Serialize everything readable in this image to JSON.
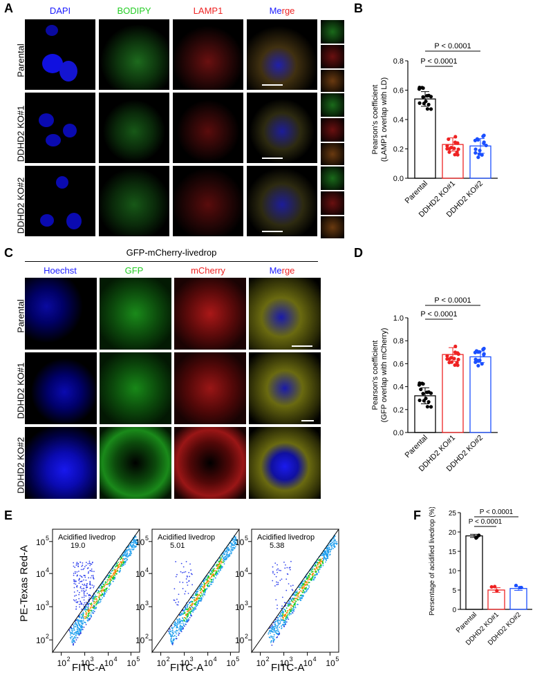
{
  "panel_letters": {
    "a": "A",
    "b": "B",
    "c": "C",
    "d": "D",
    "e": "E",
    "f": "F"
  },
  "colors": {
    "blue": "#1a1aff",
    "green": "#22cc22",
    "red": "#ee2222",
    "dark": "#000000",
    "parental": "#000000",
    "ko1": "#ee2222",
    "ko2": "#1a4fff"
  },
  "panel_a": {
    "channels": [
      "DAPI",
      "BODIPY",
      "LAMP1",
      "Merge"
    ],
    "rows": [
      "Parental",
      "DDHD2 KO#1",
      "DDHD2 KO#2"
    ]
  },
  "panel_c": {
    "title": "GFP-mCherry-livedrop",
    "channels": [
      "Hoechst",
      "GFP",
      "mCherry",
      "Merge"
    ],
    "rows": [
      "Parental",
      "DDHD2 KO#1",
      "DDHD2 KO#2"
    ]
  },
  "panel_e": {
    "gate_label": "Acidified livedrop",
    "values": [
      "19.0",
      "5.01",
      "5.38"
    ],
    "ylabel": "PE-Texas Red-A",
    "xlabel": "FITC-A"
  },
  "chart_data": [
    {
      "id": "B",
      "type": "bar",
      "categories": [
        "Parental",
        "DDHD2 KO#1",
        "DDHD2 KO#2"
      ],
      "values": [
        0.54,
        0.23,
        0.22
      ],
      "errors": [
        0.05,
        0.045,
        0.05
      ],
      "ylabel": "Pearson's coefficient\n(LAMP1 overlap with LD)",
      "ylim": [
        0,
        0.8
      ],
      "yticks": [
        "0.0",
        "0.2",
        "0.4",
        "0.6",
        "0.8"
      ],
      "annotations": [
        "P < 0.0001",
        "P < 0.0001"
      ]
    },
    {
      "id": "D",
      "type": "bar",
      "categories": [
        "Parental",
        "DDHD2 KO#1",
        "DDHD2 KO#2"
      ],
      "values": [
        0.32,
        0.68,
        0.66
      ],
      "errors": [
        0.07,
        0.06,
        0.05
      ],
      "ylabel": "Pearson's coefficient\n(GFP overlap with mCherry)",
      "ylim": [
        0,
        1.0
      ],
      "yticks": [
        "0.0",
        "0.2",
        "0.4",
        "0.6",
        "0.8",
        "1.0"
      ],
      "annotations": [
        "P < 0.0001",
        "P < 0.0001"
      ]
    },
    {
      "id": "F",
      "type": "bar",
      "categories": [
        "Parental",
        "DDHD2 KO#1",
        "DDHD2 KO#2"
      ],
      "values": [
        19.0,
        5.0,
        5.4
      ],
      "errors": [
        0.4,
        0.6,
        0.5
      ],
      "ylabel": "Persentage of acidified livedrop (%)",
      "ylim": [
        0,
        25
      ],
      "yticks": [
        "0",
        "5",
        "10",
        "15",
        "20",
        "25"
      ],
      "annotations": [
        "P < 0.0001",
        "P < 0.0001"
      ]
    }
  ]
}
